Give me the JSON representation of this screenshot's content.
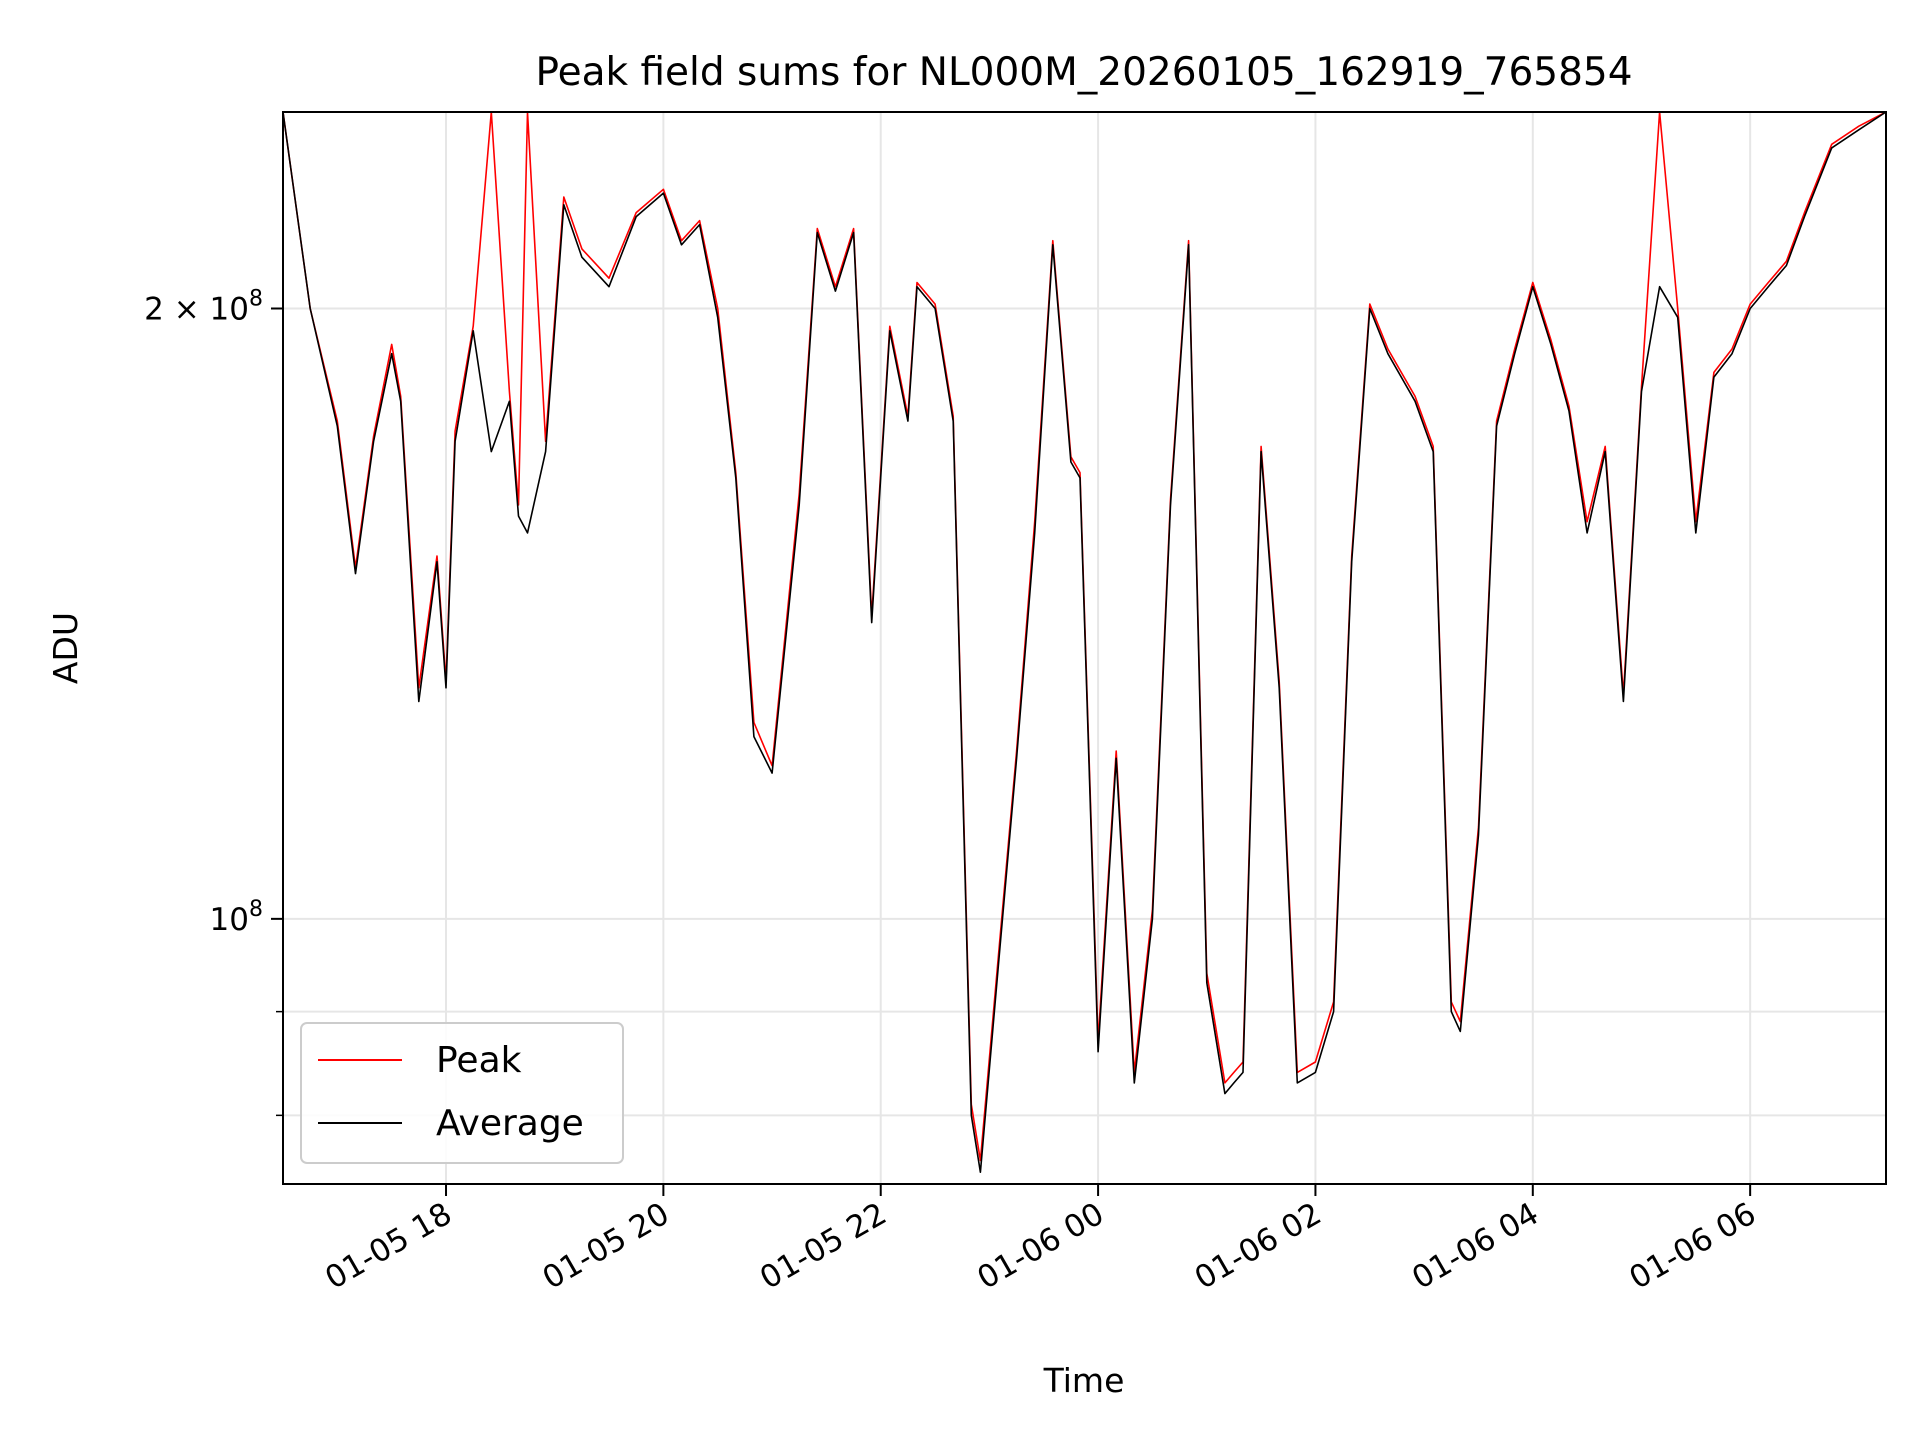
{
  "chart_data": {
    "type": "line",
    "title": "Peak field sums for NL000M_20260105_162919_765854",
    "xlabel": "Time",
    "ylabel": "ADU",
    "y_scale": "log",
    "ylim": [
      74000000,
      250000000
    ],
    "xlim": [
      "01-05 16:30",
      "01-06 07:15"
    ],
    "x_tick_labels": [
      "01-05 18",
      "01-05 20",
      "01-05 22",
      "01-06 00",
      "01-06 02",
      "01-06 04",
      "01-06 06"
    ],
    "x_tick_values": [
      "01-05 18:00",
      "01-05 20:00",
      "01-05 22:00",
      "01-06 00:00",
      "01-06 02:00",
      "01-06 04:00",
      "01-06 06:00"
    ],
    "y_tick_labels": [
      {
        "value": 100000000,
        "base": "10",
        "exp": "8",
        "coef": ""
      },
      {
        "value": 200000000,
        "base": "10",
        "exp": "8",
        "coef": "2 × "
      }
    ],
    "grid": true,
    "legend_position": "lower-left",
    "series": [
      {
        "name": "Peak",
        "color": "#ff0000"
      },
      {
        "name": "Average",
        "color": "#000000"
      }
    ],
    "x": [
      "01-05 16:30",
      "01-05 16:45",
      "01-05 17:00",
      "01-05 17:10",
      "01-05 17:20",
      "01-05 17:30",
      "01-05 17:35",
      "01-05 17:45",
      "01-05 17:55",
      "01-05 18:00",
      "01-05 18:05",
      "01-05 18:15",
      "01-05 18:25",
      "01-05 18:35",
      "01-05 18:40",
      "01-05 18:45",
      "01-05 18:55",
      "01-05 19:05",
      "01-05 19:15",
      "01-05 19:30",
      "01-05 19:45",
      "01-05 20:00",
      "01-05 20:10",
      "01-05 20:20",
      "01-05 20:30",
      "01-05 20:40",
      "01-05 20:50",
      "01-05 21:00",
      "01-05 21:15",
      "01-05 21:25",
      "01-05 21:35",
      "01-05 21:45",
      "01-05 21:55",
      "01-05 22:05",
      "01-05 22:15",
      "01-05 22:20",
      "01-05 22:30",
      "01-05 22:40",
      "01-05 22:50",
      "01-05 22:55",
      "01-05 23:05",
      "01-05 23:15",
      "01-05 23:25",
      "01-05 23:35",
      "01-05 23:45",
      "01-05 23:50",
      "01-06 00:00",
      "01-06 00:10",
      "01-06 00:20",
      "01-06 00:30",
      "01-06 00:40",
      "01-06 00:50",
      "01-06 01:00",
      "01-06 01:10",
      "01-06 01:15",
      "01-06 01:20",
      "01-06 01:30",
      "01-06 01:40",
      "01-06 01:50",
      "01-06 02:00",
      "01-06 02:10",
      "01-06 02:20",
      "01-06 02:30",
      "01-06 02:40",
      "01-06 02:55",
      "01-06 03:05",
      "01-06 03:15",
      "01-06 03:20",
      "01-06 03:30",
      "01-06 03:40",
      "01-06 03:50",
      "01-06 04:00",
      "01-06 04:10",
      "01-06 04:20",
      "01-06 04:30",
      "01-06 04:40",
      "01-06 04:50",
      "01-06 05:00",
      "01-06 05:10",
      "01-06 05:20",
      "01-06 05:30",
      "01-06 05:40",
      "01-06 05:50",
      "01-06 06:00",
      "01-06 06:10",
      "01-06 06:20",
      "01-06 06:30",
      "01-06 06:45",
      "01-06 07:00",
      "01-06 07:15"
    ],
    "average": [
      250000000,
      200000000,
      175000000,
      148000000,
      172000000,
      190000000,
      180000000,
      128000000,
      150000000,
      130000000,
      172000000,
      195000000,
      170000000,
      180000000,
      158000000,
      155000000,
      170000000,
      225000000,
      212000000,
      205000000,
      222000000,
      228000000,
      215000000,
      220000000,
      198000000,
      165000000,
      123000000,
      118000000,
      160000000,
      218000000,
      204000000,
      218000000,
      140000000,
      195000000,
      176000000,
      205000000,
      200000000,
      176000000,
      80000000,
      75000000,
      95000000,
      120000000,
      155000000,
      215000000,
      168000000,
      165000000,
      86000000,
      120000000,
      83000000,
      100000000,
      160000000,
      215000000,
      93000000,
      82000000,
      83000000,
      84000000,
      170000000,
      130000000,
      83000000,
      84000000,
      90000000,
      150000000,
      200000000,
      190000000,
      180000000,
      170000000,
      90000000,
      88000000,
      110000000,
      175000000,
      190000000,
      205000000,
      192000000,
      178000000,
      155000000,
      170000000,
      128000000,
      182000000,
      205000000,
      198000000,
      155000000,
      185000000,
      190000000,
      200000000,
      205000000,
      210000000,
      222000000,
      240000000,
      245000000,
      252000000
    ],
    "peak": [
      250000000,
      200000000,
      176000000,
      149000000,
      173000000,
      192000000,
      181000000,
      130000000,
      151000000,
      131000000,
      174000000,
      196000000,
      250000000,
      182000000,
      160000000,
      250000000,
      172000000,
      227000000,
      214000000,
      207000000,
      223000000,
      229000000,
      216000000,
      221000000,
      200000000,
      166000000,
      125000000,
      119000000,
      162000000,
      219000000,
      205000000,
      219000000,
      141000000,
      196000000,
      177000000,
      206000000,
      201000000,
      177000000,
      81000000,
      76000000,
      96000000,
      121000000,
      157000000,
      216000000,
      169000000,
      166000000,
      87000000,
      121000000,
      84000000,
      101000000,
      161000000,
      216000000,
      94000000,
      83000000,
      84000000,
      85000000,
      171000000,
      131000000,
      84000000,
      85000000,
      91000000,
      151000000,
      201000000,
      191000000,
      181000000,
      171000000,
      91000000,
      89000000,
      111000000,
      176000000,
      191000000,
      206000000,
      193000000,
      179000000,
      157000000,
      171000000,
      129000000,
      183000000,
      250000000,
      200000000,
      157000000,
      186000000,
      191000000,
      201000000,
      206000000,
      211000000,
      223000000,
      241000000,
      246000000,
      253000000
    ]
  }
}
